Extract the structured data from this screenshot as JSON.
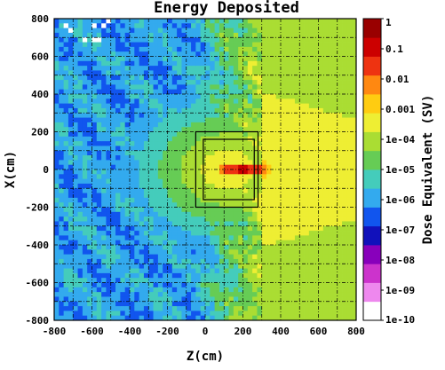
{
  "chart_data": {
    "type": "heatmap",
    "title": "Energy Deposited",
    "xlabel": "Z(cm)",
    "ylabel": "X(cm)",
    "xlim": [
      -800,
      800
    ],
    "ylim": [
      -800,
      800
    ],
    "x_ticks": [
      "-800",
      "-600",
      "-400",
      "-200",
      "0",
      "200",
      "400",
      "600",
      "800"
    ],
    "y_ticks": [
      "800",
      "600",
      "400",
      "200",
      "0",
      "-200",
      "-400",
      "-600",
      "-800"
    ],
    "grid": true,
    "colorbar": {
      "label": "Dose Equivalent (SV)",
      "scale": "log",
      "range": [
        1e-10,
        1
      ],
      "tick_labels": [
        "1",
        "0.1",
        "0.01",
        "0.001",
        "1e-04",
        "1e-05",
        "1e-06",
        "1e-07",
        "1e-08",
        "1e-09",
        "1e-10"
      ],
      "colors": [
        "#ffffff",
        "#ee88ee",
        "#cc33cc",
        "#8800bb",
        "#1111bb",
        "#1155ee",
        "#33aaee",
        "#44ccbb",
        "#66cc55",
        "#aadd33",
        "#eeee33",
        "#ffcc11",
        "#ff8811",
        "#ee3311",
        "#cc0000",
        "#990000"
      ]
    },
    "target_box": {
      "z": [
        -50,
        280
      ],
      "x": [
        -200,
        200
      ]
    },
    "inner_box": {
      "z": [
        -10,
        260
      ],
      "x": [
        -160,
        160
      ]
    },
    "beam": {
      "z": [
        80,
        330
      ],
      "x": 0
    },
    "field_levels": {
      "background": "1e-06",
      "transition_z": 300,
      "downstream": "1e-04",
      "near_target": "1e-03",
      "beam_core": "1e-01"
    }
  }
}
